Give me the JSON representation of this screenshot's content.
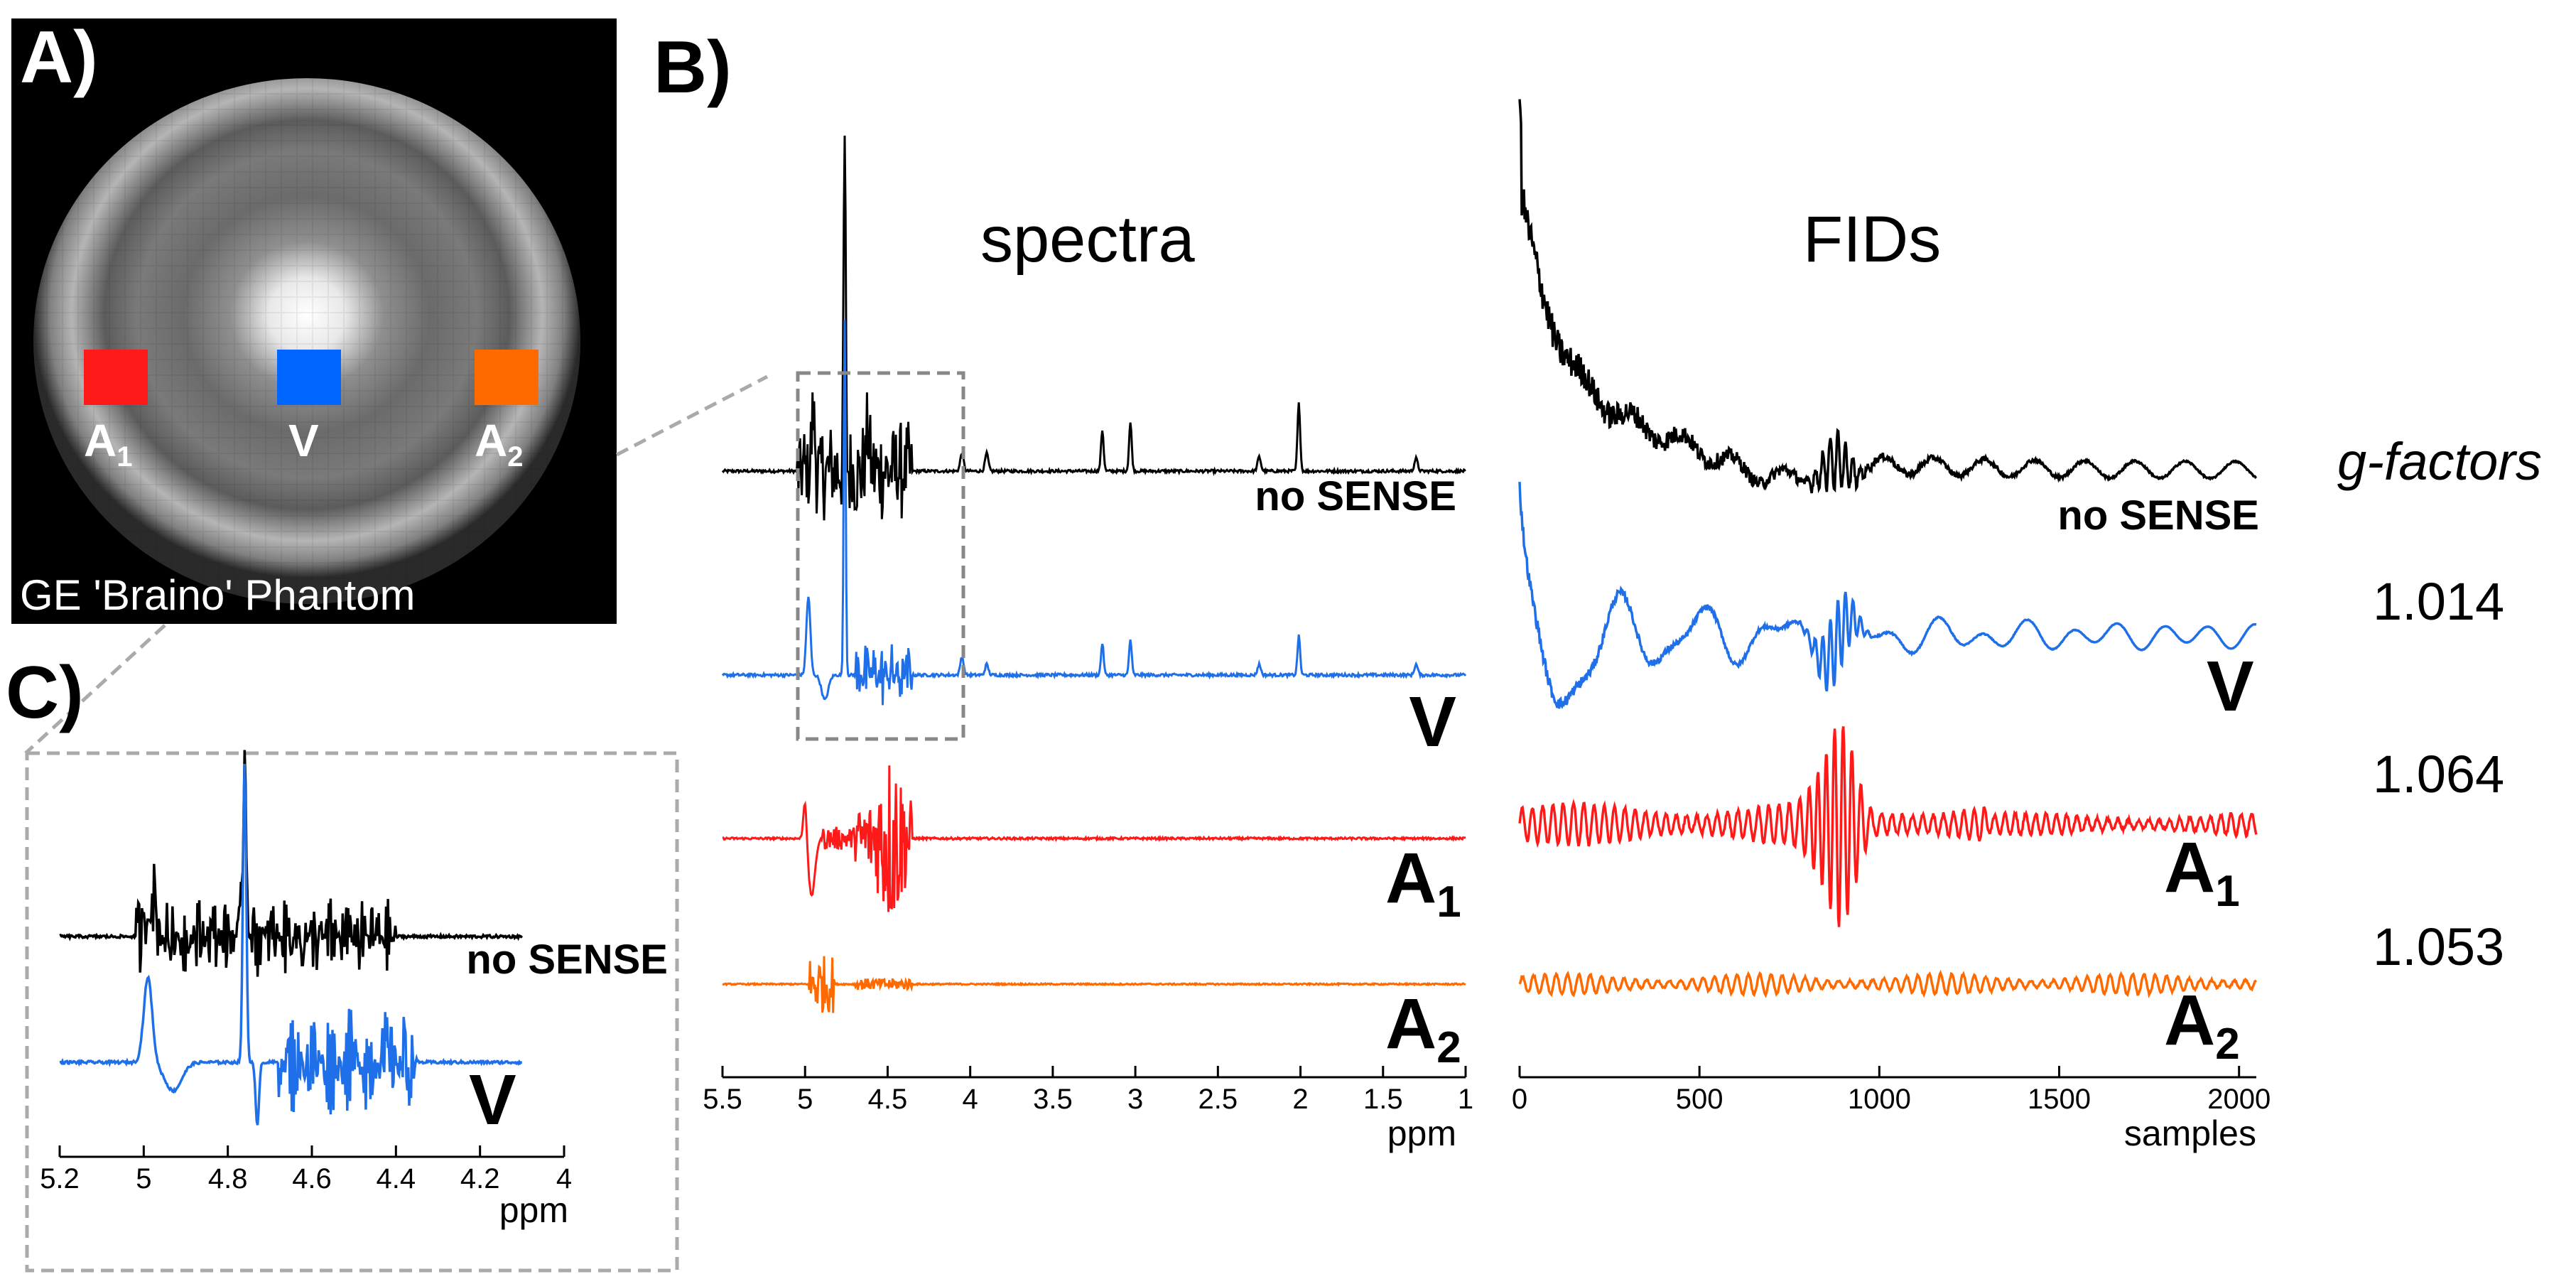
{
  "panels": {
    "a": {
      "letter": "A)",
      "phantom_caption": "GE 'Braino' Phantom",
      "rois": [
        {
          "label": "A",
          "sub": "1",
          "color": "#ff1a1a"
        },
        {
          "label": "V",
          "sub": "",
          "color": "#0066ff"
        },
        {
          "label": "A",
          "sub": "2",
          "color": "#ff6a00"
        }
      ]
    },
    "b": {
      "letter": "B)",
      "spectra_title": "spectra",
      "fids_title": "FIDs",
      "gfactor_title": "g-factors",
      "gfactors": [
        "1.014",
        "1.064",
        "1.053"
      ]
    },
    "c": {
      "letter": "C)"
    }
  },
  "traces": {
    "nosense": {
      "name": "no SENSE",
      "color": "#000000"
    },
    "v": {
      "name": "V",
      "sub": "",
      "color": "#1f6fe8"
    },
    "a1": {
      "name": "A",
      "sub": "1",
      "color": "#ff1a1a"
    },
    "a2": {
      "name": "A",
      "sub": "2",
      "color": "#ff6a00"
    }
  },
  "chart_data": [
    {
      "type": "line",
      "title": "spectra",
      "xlabel": "ppm",
      "xlim": [
        5.5,
        1
      ],
      "x_reversed": true,
      "xticks": [
        "5.5",
        "5",
        "4.5",
        "4",
        "3.5",
        "3",
        "2.5",
        "2",
        "1.5",
        "1"
      ],
      "series": [
        {
          "name": "no SENSE",
          "peaks_ppm": [
            5.0,
            4.92,
            4.76,
            4.6,
            4.45,
            4.05,
            3.9,
            3.2,
            3.03,
            2.25,
            2.01,
            1.3
          ],
          "tallest_peak_ppm": 4.76
        },
        {
          "name": "V",
          "peaks_ppm": [
            4.98,
            4.76,
            4.55,
            4.45,
            4.05,
            3.9,
            3.2,
            3.03,
            2.25,
            2.01,
            1.3
          ],
          "tallest_peak_ppm": 4.76
        },
        {
          "name": "A1",
          "peaks_ppm": [
            5.0,
            4.6,
            4.45
          ],
          "tallest_peak_ppm": 4.45
        },
        {
          "name": "A2",
          "peaks_ppm": [
            4.9,
            4.55
          ],
          "tallest_peak_ppm": 4.9
        }
      ],
      "zoom_box_ppm": [
        5.1,
        4.2
      ]
    },
    {
      "type": "line",
      "title": "FIDs",
      "xlabel": "samples",
      "xlim": [
        0,
        2048
      ],
      "xticks": [
        "0",
        "500",
        "1000",
        "1500",
        "2000"
      ],
      "series": [
        {
          "name": "no SENSE",
          "feature": "decaying noisy signal, echo near sample 880"
        },
        {
          "name": "V",
          "feature": "oscillating decay, echo near sample 880"
        },
        {
          "name": "A1",
          "feature": "large echo near sample 880"
        },
        {
          "name": "A2",
          "feature": "small oscillations"
        }
      ],
      "gfactors": {
        "V": 1.014,
        "A1": 1.064,
        "A2": 1.053
      }
    },
    {
      "type": "line",
      "title": "C) zoom",
      "xlabel": "ppm",
      "xlim": [
        5.2,
        4
      ],
      "x_reversed": true,
      "xticks": [
        "5.2",
        "5",
        "4.8",
        "4.6",
        "4.4",
        "4.2",
        "4"
      ],
      "series": [
        {
          "name": "no SENSE",
          "tallest_peak_ppm": 4.76
        },
        {
          "name": "V",
          "tallest_peak_ppm": 4.76
        }
      ]
    }
  ]
}
